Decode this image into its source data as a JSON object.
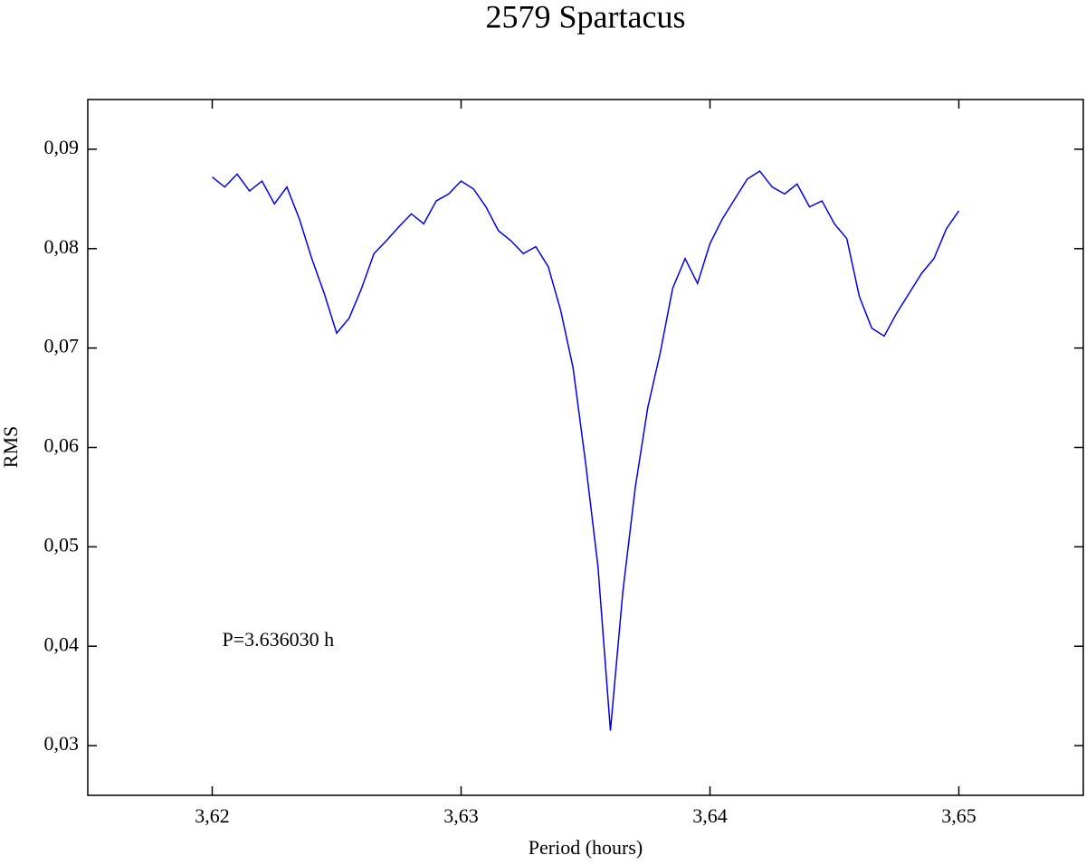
{
  "chart_data": {
    "type": "line",
    "title": "2579 Spartacus",
    "xlabel": "Period (hours)",
    "ylabel": "RMS",
    "annotation": "P=3.636030 h",
    "annotation_x": 3.6204,
    "annotation_y": 0.0405,
    "x": [
      3.62,
      3.6205,
      3.621,
      3.6215,
      3.622,
      3.6225,
      3.623,
      3.6235,
      3.624,
      3.6245,
      3.625,
      3.6255,
      3.626,
      3.6265,
      3.627,
      3.6275,
      3.628,
      3.6285,
      3.629,
      3.6295,
      3.63,
      3.6305,
      3.631,
      3.6315,
      3.632,
      3.6325,
      3.633,
      3.6335,
      3.634,
      3.6345,
      3.635,
      3.6355,
      3.636,
      3.6365,
      3.637,
      3.6375,
      3.638,
      3.6385,
      3.639,
      3.6395,
      3.64,
      3.6405,
      3.641,
      3.6415,
      3.642,
      3.6425,
      3.643,
      3.6435,
      3.644,
      3.6445,
      3.645,
      3.6455,
      3.646,
      3.6465,
      3.647,
      3.6475,
      3.648,
      3.6485,
      3.649,
      3.6495,
      3.65
    ],
    "series": [
      {
        "name": "RMS",
        "color": "#0000ee",
        "values": [
          0.0872,
          0.0862,
          0.0875,
          0.0858,
          0.0868,
          0.0845,
          0.0862,
          0.083,
          0.079,
          0.0755,
          0.0715,
          0.073,
          0.076,
          0.0795,
          0.0808,
          0.0822,
          0.0835,
          0.0825,
          0.0848,
          0.0855,
          0.0868,
          0.086,
          0.0842,
          0.0818,
          0.0808,
          0.0795,
          0.0802,
          0.0782,
          0.0738,
          0.068,
          0.0585,
          0.048,
          0.0315,
          0.0455,
          0.056,
          0.064,
          0.0695,
          0.076,
          0.079,
          0.0765,
          0.0805,
          0.083,
          0.085,
          0.087,
          0.0878,
          0.0862,
          0.0855,
          0.0865,
          0.0842,
          0.0848,
          0.0825,
          0.081,
          0.0752,
          0.072,
          0.0712,
          0.0735,
          0.0755,
          0.0775,
          0.079,
          0.082,
          0.0838
        ]
      }
    ],
    "xlim": [
      3.615,
      3.655
    ],
    "ylim": [
      0.025,
      0.095
    ],
    "xticks": [
      {
        "value": 3.62,
        "label": "3,62"
      },
      {
        "value": 3.63,
        "label": "3,63"
      },
      {
        "value": 3.64,
        "label": "3,64"
      },
      {
        "value": 3.65,
        "label": "3,65"
      }
    ],
    "yticks": [
      {
        "value": 0.03,
        "label": "0,03"
      },
      {
        "value": 0.04,
        "label": "0,04"
      },
      {
        "value": 0.05,
        "label": "0,05"
      },
      {
        "value": 0.06,
        "label": "0,06"
      },
      {
        "value": 0.07,
        "label": "0,07"
      },
      {
        "value": 0.08,
        "label": "0,08"
      },
      {
        "value": 0.09,
        "label": "0,09"
      }
    ],
    "grid": false
  }
}
